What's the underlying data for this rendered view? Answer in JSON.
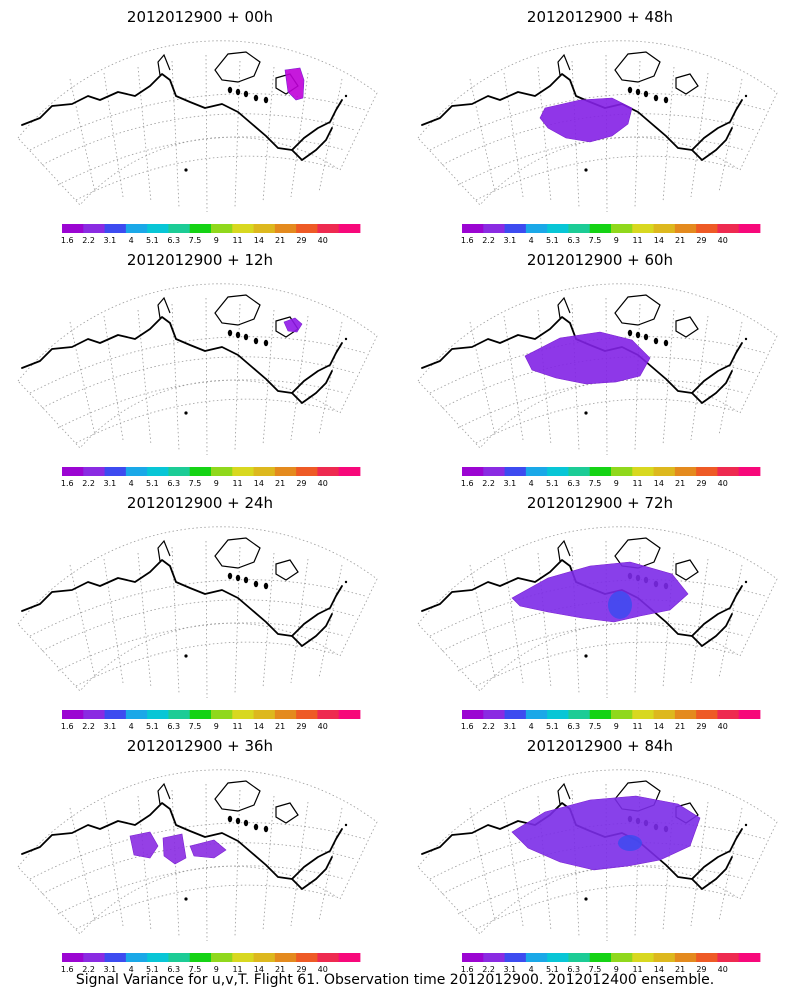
{
  "colorbar": {
    "colors": [
      "#9b05d2",
      "#8a2be2",
      "#3d4bf0",
      "#1aa8e8",
      "#08c6d6",
      "#1ccc96",
      "#15d315",
      "#90d81c",
      "#d8d820",
      "#ddb81e",
      "#e48a1e",
      "#ee5a26",
      "#ee2a50",
      "#f7087a"
    ],
    "tick_labels": [
      "1.6",
      "2.2",
      "3.1",
      "4",
      "5.1",
      "6.3",
      "7.5",
      "9",
      "11",
      "14",
      "21",
      "29",
      "40"
    ]
  },
  "panels": [
    {
      "title": "2012012900  + 00h",
      "level": 0
    },
    {
      "title": "2012012900  + 48h",
      "level": 3
    },
    {
      "title": "2012012900  + 12h",
      "level": 1
    },
    {
      "title": "2012012900  + 60h",
      "level": 4
    },
    {
      "title": "2012012900  + 24h",
      "level": 1
    },
    {
      "title": "2012012900  + 72h",
      "level": 5
    },
    {
      "title": "2012012900  + 36h",
      "level": 2
    },
    {
      "title": "2012012900  + 84h",
      "level": 6
    }
  ],
  "caption": "Signal Variance for u,v,T. Flight 61. Observation time 2012012900. 2012012400 ensemble."
}
